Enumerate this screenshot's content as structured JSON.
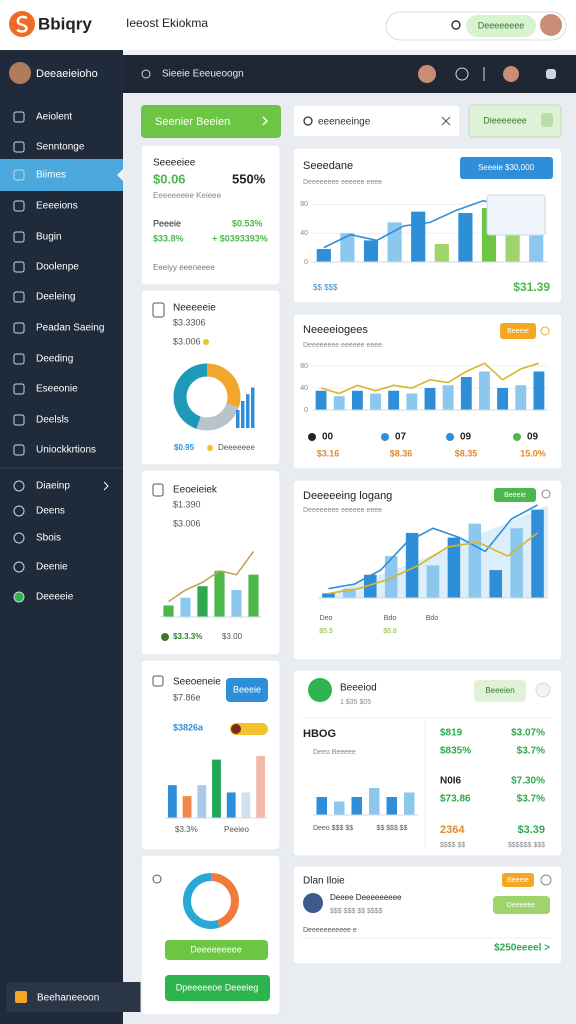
{
  "header": {
    "logo": "Bbiqry",
    "title": "Ieeost Ekiokma",
    "search_button": "Deeeeeeee"
  },
  "sidebar": {
    "user": "Deeaeieioho",
    "items": [
      "Aeiolent",
      "Senntonge",
      "Biimes",
      "Eeeeions",
      "Bugin",
      "Doolenpe",
      "Deeleing",
      "Peadan Saeing",
      "Deeding",
      "Eseeonie",
      "Deelsls",
      "Uniockkrtions"
    ],
    "active": 2,
    "items2": [
      "Diaeinp",
      "Deens",
      "Sbois",
      "Deenie",
      "Deeeeie"
    ],
    "footer": "Beehaneeoon"
  },
  "toolbar": {
    "title": "Sieeie Eeeueoogn"
  },
  "left": {
    "button": "Seenier Beeien",
    "summary": {
      "title": "Seeeeiee",
      "value": "$0.06",
      "percent": "550%",
      "subtitle": "Eeeeeeeee Keieee",
      "label": "Peeeie",
      "rate": "$0.53%",
      "amount": "$33.8%",
      "change": "+ $0393393%",
      "footer": "Eeeiyy eeeneeee"
    },
    "card1": {
      "title": "Neeeeeie",
      "subtitle": "$3.3306",
      "note": "$3.006",
      "legend": [
        "$0.95",
        "Deeeeeee"
      ],
      "chart": {
        "type": "donut",
        "values": [
          30,
          25,
          45
        ],
        "colors": [
          "#f2a62b",
          "#b8c3cb",
          "#1e9ab8"
        ]
      },
      "side_bars": {
        "values": [
          40,
          60,
          75,
          90
        ],
        "color": "#2e8fd8",
        "ylim": [
          0,
          100
        ]
      }
    },
    "card2": {
      "title": "Eeoeieiek",
      "subtitle": "$1.390",
      "note": "$3.006",
      "legend": [
        "$3.3.3%",
        "$3.00"
      ],
      "chart": {
        "type": "bar",
        "bars": [
          15,
          25,
          40,
          60,
          35,
          55
        ],
        "bar_colors": [
          "#4cb84c",
          "#8cc8ee",
          "#2fa84f",
          "#4cb84c",
          "#8cc8ee",
          "#4cb84c"
        ],
        "lines": [
          {
            "color": "#c9a25a",
            "values": [
              20,
              35,
              45,
              60,
              55,
              85
            ]
          }
        ],
        "ylim": [
          0,
          100
        ]
      }
    },
    "card3": {
      "title": "Seeoeneie",
      "subtitle": "$7.86e",
      "button": "Beeeie",
      "note": "$3826a",
      "legend": [
        "$3.3%",
        "Peeieo"
      ],
      "chart": {
        "type": "bar",
        "bars": [
          45,
          30,
          45,
          80,
          35,
          35,
          85
        ],
        "bar_colors": [
          "#2e8fd8",
          "#f08a4b",
          "#a9cbe8",
          "#1fa85a",
          "#2e8fd8",
          "#cfe2f1",
          "#f3b9a8"
        ],
        "lines": [],
        "ylim": [
          0,
          100
        ]
      }
    },
    "card4": {
      "chart": {
        "type": "donut",
        "values": [
          45,
          55
        ],
        "colors": [
          "#f07b3a",
          "#29a8d8"
        ]
      },
      "label": "Deeeeeeeee",
      "button": "Dpeeeeeoe Deeeieg"
    }
  },
  "right": {
    "search": "eeeneeinge",
    "button": "Dieeeeeee",
    "chartA": {
      "title": "Seeedane",
      "subtitle": "Deeeeeeee eeeeee eeee",
      "badge": "Seeeie $30,000",
      "legend": "$$ $$$",
      "total": "$31.39",
      "chart": {
        "type": "bar",
        "bars": [
          18,
          40,
          30,
          55,
          70,
          25,
          68,
          75,
          55,
          45
        ],
        "bar_colors": [
          "#2e8fd8",
          "#8cc8ee",
          "#2e8fd8",
          "#8cc8ee",
          "#2e8fd8",
          "#9fd36b",
          "#2e8fd8",
          "#6cc644",
          "#9fd36b",
          "#8cc8ee"
        ],
        "lines": [
          {
            "color": "#2e8fd8",
            "values": [
              20,
              38,
              30,
              50,
              55,
              72,
              85,
              78,
              82
            ]
          }
        ],
        "ylim": [
          0,
          100
        ],
        "yticks": [
          0,
          40,
          80
        ]
      }
    },
    "chartB": {
      "title": "Neeeeiogees",
      "subtitle": "Deeeeeeee eeeeee eeee",
      "badge": "Beeeie",
      "chart": {
        "type": "bar",
        "bars": [
          35,
          25,
          35,
          30,
          35,
          30,
          40,
          45,
          60,
          70,
          40,
          45,
          70
        ],
        "bar_colors": [
          "#2e8fd8",
          "#8cc8ee"
        ],
        "lines": [
          {
            "color": "#d9b42a",
            "values": [
              40,
              30,
              45,
              35,
              45,
              40,
              55,
              50,
              70,
              85,
              55,
              75,
              85
            ]
          }
        ],
        "ylim": [
          0,
          100
        ],
        "yticks": [
          0,
          40,
          80
        ]
      },
      "metrics": [
        {
          "label": "00",
          "value": "$3.16",
          "color": "#222222"
        },
        {
          "label": "07",
          "value": "$8.36",
          "color": "#2e8fd8"
        },
        {
          "label": "09",
          "value": "$8.35",
          "color": "#2e8fd8"
        },
        {
          "label": "09",
          "value": "15.0%",
          "color": "#4cb84c"
        }
      ]
    },
    "chartC": {
      "title": "Deeeeeing logang",
      "subtitle": "Deeeeeeee eeeeee eeee",
      "badge": "Beeeie",
      "chart": {
        "type": "bar",
        "bars": [
          5,
          10,
          25,
          45,
          70,
          35,
          65,
          80,
          30,
          75,
          95
        ],
        "bar_colors": [
          "#2e8fd8",
          "#8cc8ee"
        ],
        "lines": [
          {
            "color": "#2e8fd8",
            "values": [
              10,
              15,
              30,
              60,
              75,
              65,
              50,
              85,
              100
            ]
          },
          {
            "color": "#d9b42a",
            "values": [
              5,
              10,
              20,
              35,
              55,
              60,
              45,
              70
            ]
          }
        ],
        "ylim": [
          0,
          100
        ]
      },
      "xlabels": [
        "Deo",
        "Bdo",
        "Bdo"
      ],
      "xlabels2": [
        "$5.9",
        "$6.8"
      ]
    },
    "cardD": {
      "title": "Beeeiod",
      "subtitle": "1 $35 $05",
      "pill": "Beeeien",
      "kpi": "HBOG",
      "kpi_sub": "Deeo Beeeee",
      "chart": {
        "type": "bar",
        "bars": [
          40,
          30,
          40,
          60,
          40,
          50
        ],
        "bar_colors": [
          "#2e8fd8",
          "#8cc8ee"
        ],
        "lines": [],
        "ylim": [
          0,
          100
        ]
      },
      "legend": [
        "Deeo $$$ $$",
        "$$ $$$ $$"
      ],
      "rows": [
        [
          "$819",
          "$3.07%"
        ],
        [
          "$835%",
          "$3.7%"
        ],
        [
          "N0I6",
          "$7.30%"
        ],
        [
          "$73.86",
          "$3.7%"
        ]
      ],
      "footer_left": "2364",
      "footer_right": "$3.39",
      "footer_sub": [
        "$$$$ $$",
        "$$$$$$ $$$"
      ]
    },
    "cardE": {
      "title": "Dlan Iloie",
      "badge": "Beeeie",
      "name": "Deeee Deeeeeeeee",
      "sub": "$$$ $$$ $$ $$$$",
      "pill": "Deeeeee",
      "note": "Deeeeeeeeeee e",
      "link": "$250eeeel >"
    }
  }
}
